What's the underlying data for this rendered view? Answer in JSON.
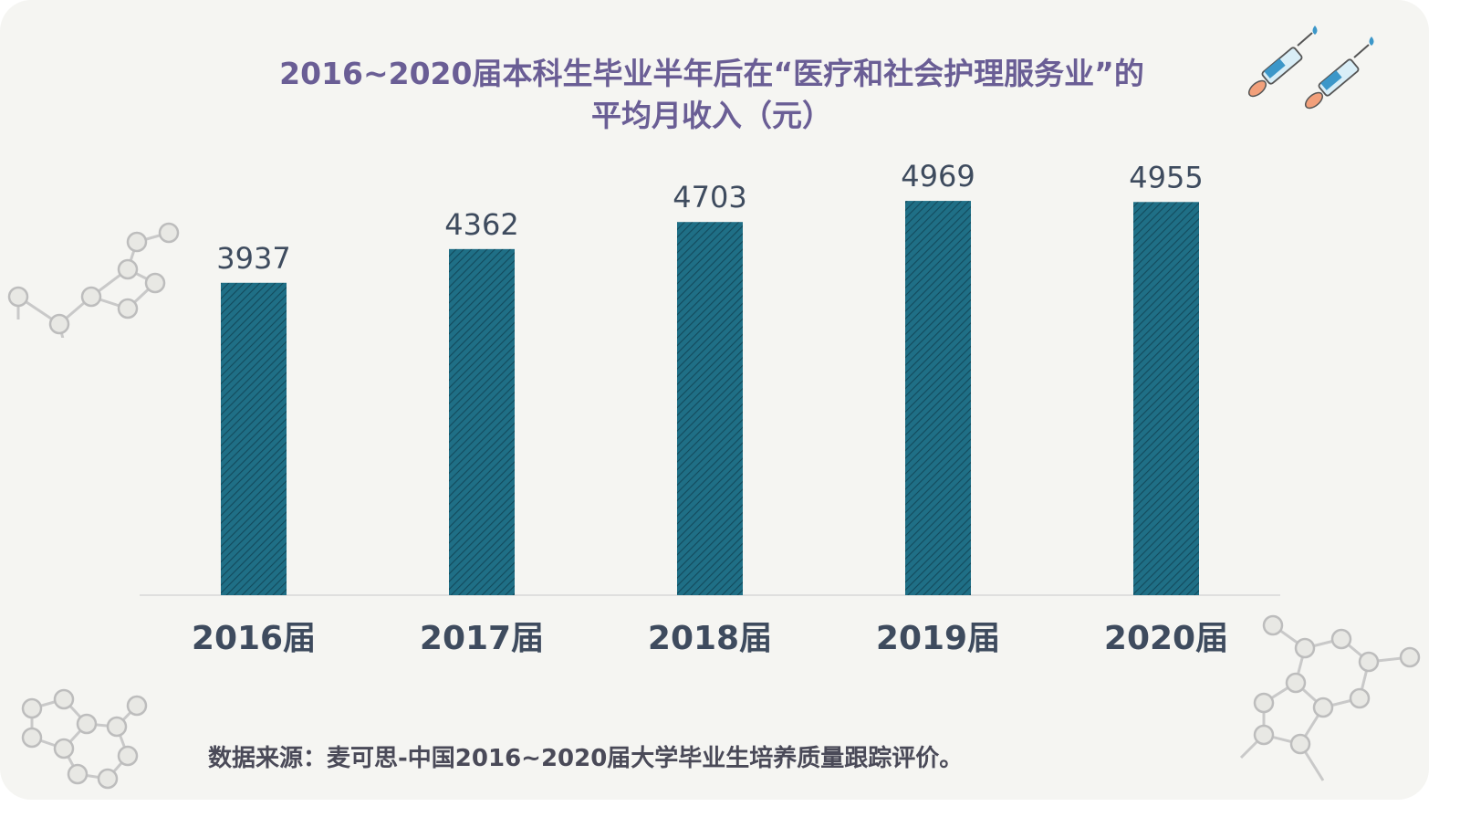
{
  "title_line1": "2016~2020届本科生毕业半年后在“医疗和社会护理服务业”的",
  "title_line2": "平均月收入（元）",
  "source": "数据来源：麦可思-中国2016~2020届大学毕业生培养质量跟踪评价。",
  "colors": {
    "bar": "#1f6f86",
    "bar_hatch": "#134a5c",
    "title": "#6a5e95",
    "label": "#3e4b5e",
    "background": "#f5f5f2"
  },
  "icons": {
    "top_right": "syringe-icon",
    "decor": "molecule-structure-icon"
  },
  "chart_data": {
    "type": "bar",
    "title": "2016~2020届本科生毕业半年后在“医疗和社会护理服务业”的平均月收入（元）",
    "categories": [
      "2016届",
      "2017届",
      "2018届",
      "2019届",
      "2020届"
    ],
    "values": [
      3937,
      4362,
      4703,
      4969,
      4955
    ],
    "data_labels": [
      "3937",
      "4362",
      "4703",
      "4969",
      "4955"
    ],
    "xlabel": "",
    "ylabel": "",
    "ylim": [
      0,
      5200
    ],
    "grid": false,
    "legend": "none",
    "pattern": "diagonal-hatch"
  }
}
